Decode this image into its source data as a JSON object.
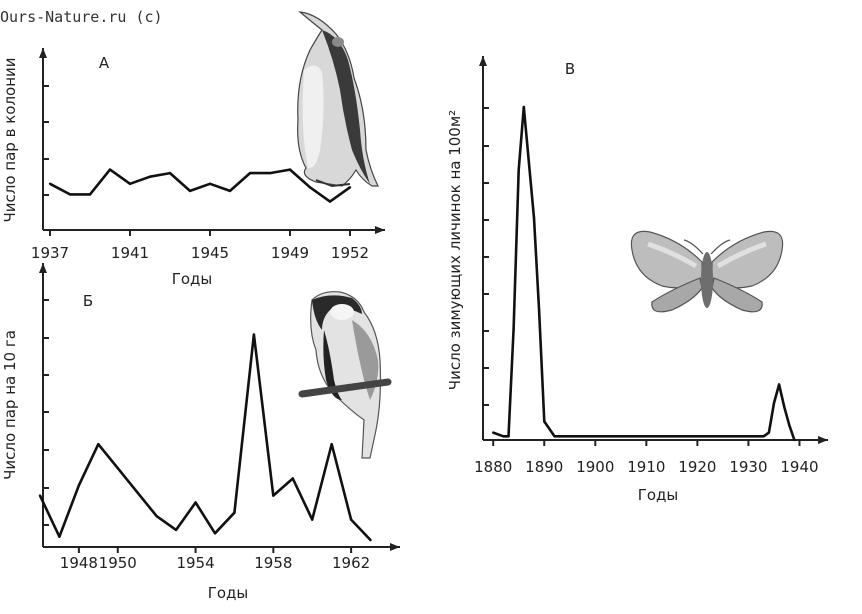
{
  "watermark": "Ours-Nature.ru (c)",
  "chart_data": [
    {
      "type": "line",
      "panel_label": "А",
      "xlabel": "Годы",
      "ylabel": "Число пар в колонии",
      "x_ticks": [
        "1937",
        "1941",
        "1945",
        "1949",
        "1952"
      ],
      "xlim": [
        1937,
        1953
      ],
      "ylim": [
        0,
        4.5
      ],
      "x": [
        1937,
        1938,
        1939,
        1940,
        1941,
        1942,
        1943,
        1944,
        1945,
        1946,
        1947,
        1948,
        1949,
        1950,
        1951,
        1952
      ],
      "values": [
        1.3,
        1.0,
        1.0,
        1.7,
        1.3,
        1.5,
        1.6,
        1.1,
        1.3,
        1.1,
        1.6,
        1.6,
        1.7,
        1.2,
        0.8,
        1.2
      ],
      "image": "penguin"
    },
    {
      "type": "line",
      "panel_label": "Б",
      "xlabel": "Годы",
      "ylabel": "Число пар на 10 га",
      "x_ticks": [
        "1948",
        "1950",
        "1954",
        "1958",
        "1962"
      ],
      "xlim": [
        1946,
        1964
      ],
      "ylim": [
        0,
        7.5
      ],
      "x": [
        1946,
        1947,
        1948,
        1949,
        1950,
        1951,
        1952,
        1953,
        1954,
        1955,
        1956,
        1957,
        1958,
        1959,
        1960,
        1961,
        1962,
        1963
      ],
      "values": [
        1.5,
        0.3,
        1.8,
        3.0,
        2.3,
        1.6,
        0.9,
        0.5,
        1.3,
        0.4,
        1.0,
        6.2,
        1.5,
        2.0,
        0.8,
        3.0,
        0.8,
        0.2
      ],
      "image": "great-tit"
    },
    {
      "type": "line",
      "panel_label": "В",
      "xlabel": "Годы",
      "ylabel": "Число зимующих личинок на 100м²",
      "x_ticks": [
        "1880",
        "1890",
        "1900",
        "1910",
        "1920",
        "1930",
        "1940"
      ],
      "xlim": [
        1878,
        1945
      ],
      "ylim": [
        0,
        10
      ],
      "x": [
        1880,
        1882,
        1883,
        1884,
        1885,
        1886,
        1888,
        1889,
        1890,
        1892,
        1895,
        1900,
        1905,
        1910,
        1915,
        1920,
        1925,
        1930,
        1933,
        1934,
        1935,
        1936,
        1937,
        1938,
        1939
      ],
      "values": [
        0.2,
        0.1,
        0.1,
        3.0,
        7.3,
        9.0,
        6.0,
        3.5,
        0.5,
        0.1,
        0.1,
        0.1,
        0.1,
        0.1,
        0.1,
        0.1,
        0.1,
        0.1,
        0.1,
        0.2,
        1.0,
        1.5,
        0.9,
        0.4,
        0.0
      ],
      "image": "moth"
    }
  ]
}
